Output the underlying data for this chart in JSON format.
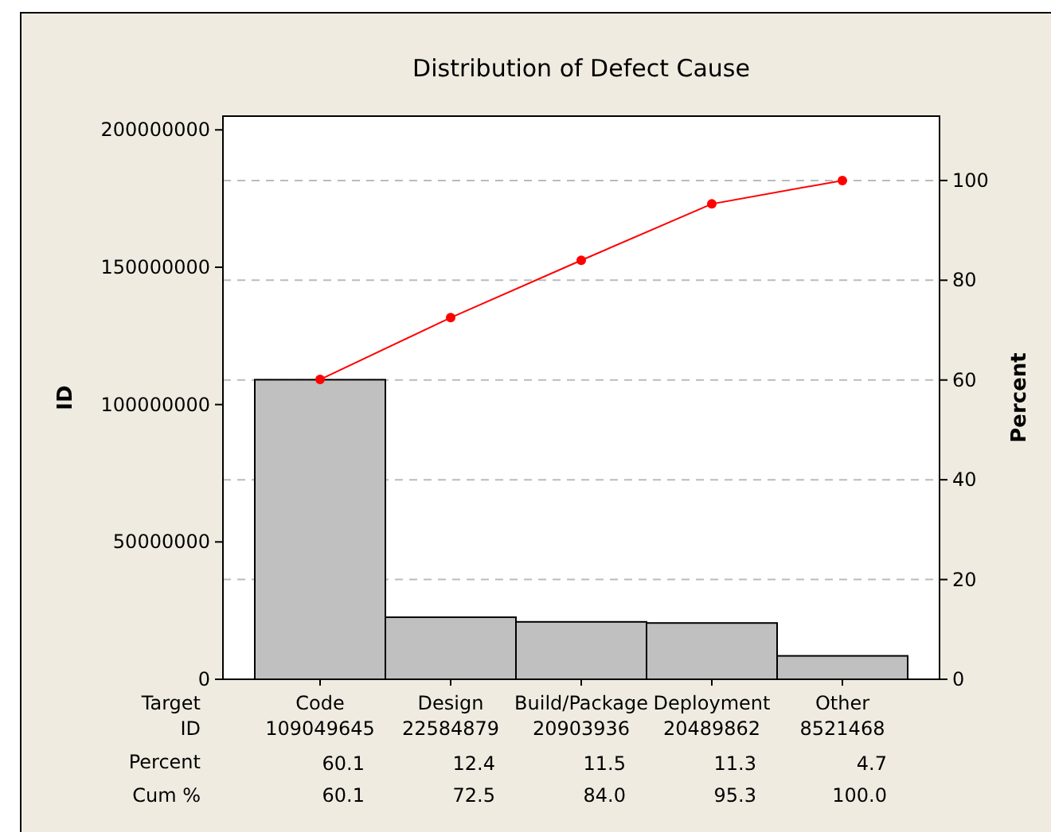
{
  "chart_data": {
    "type": "bar",
    "title": "Distribution of Defect Cause",
    "xlabel": "Target",
    "ylabel": "ID",
    "y2label": "Percent",
    "categories": [
      "Code",
      "Design",
      "Build/Package",
      "Deployment",
      "Other"
    ],
    "series": [
      {
        "color": "#c0c0c0",
        "values": [
          109049645,
          22584879,
          20903936,
          20489862,
          8521468
        ]
      },
      {
        "type": "line",
        "axis": "y2",
        "color": "#ff0000",
        "values": [
          60.1,
          72.5,
          84.0,
          95.3,
          100.0
        ],
        "value_labels": [
          "60.1",
          "72.5",
          "84.0",
          "95.3",
          "100.0"
        ]
      }
    ],
    "annotations": [
      "ID",
      "Percent",
      "Cum %",
      "60.1",
      "12.4",
      "11.5",
      "11.3",
      "4.7"
    ],
    "ylim": [
      0,
      205000000
    ],
    "yticks": [
      0,
      50000000,
      100000000,
      150000000,
      200000000
    ],
    "y2lim": [
      0,
      112.9
    ],
    "y2ticks": [
      0,
      20,
      40,
      60,
      80,
      100
    ],
    "grid": "y",
    "marker": "circle",
    "line_style": "solid",
    "data_labels": true
  }
}
